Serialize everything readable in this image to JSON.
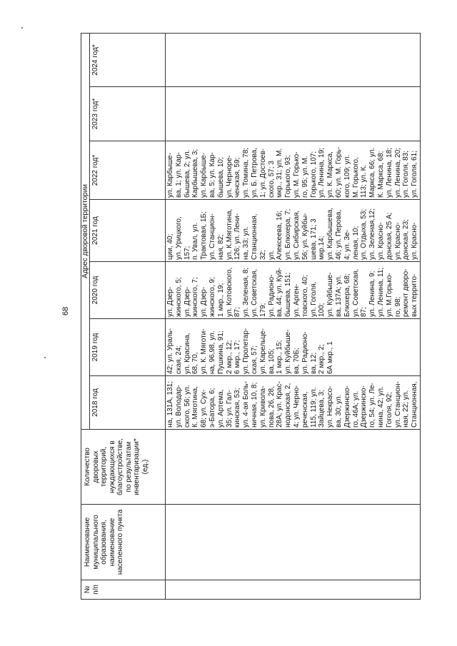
{
  "page_number": "68",
  "table": {
    "headers": {
      "num": "№\nп/п",
      "name": "Наименование\nмуниципального\nобразования,\nнаименование\nнаселенного пункта",
      "count": "Количество\nдворовых\nтерриторий,\nнуждающихся в\nблагоустройстве,\nпо результатам\nинвентаризации*\n(ед.)",
      "group": "Адрес дворовой территории",
      "years": [
        "2018 год",
        "2019 год",
        "2020 год",
        "2021 год",
        "2022 год*",
        "2023 год*",
        "2024 год*"
      ]
    },
    "row": {
      "num": "",
      "name": "",
      "count": "",
      "years": [
        "на, 131А, 131;\nул. Володар-\nского, 56; ул.\nК. Мяготина,\n68; ул. Сух-\nэ-Батора, 6;\nул. Артема,\n35; ул. Гал-\nкинская, 53;\nул. 4-ая Боль-\nничная, 10, 8;\nул. Кривола-\nпова, 26, 28,\n28А; ул. Крас-\nнодонская, 2,\n4; ул. Черно-\nреченская,\n115, 119; ул.\nЗайцева, 3;\nул. Некрасо-\nва, 30; ул.\nДзержинско-\nго, 46А; ул.\nДзержинско-\nго, 54; ул. Ле-\nнина, 42; ул.\nГоголя, 92;\nул. Станцион-\nная, 22; ул.\nСтанционная,",
        "42; ул. Ураль-\nская, 24;\nул. Красина,\n68, 70,\nул. К. Мяготи-\nна, 96,98, ул.\nПушкина, 91;\n2 мкр., 12;\n6 мкр., 17;\nул. Пролетар-\nская, 57;\nул. Карельце-\nва, 105;\n1 мкр., 15;\nул. Куйбыше-\nва, 70Б;\nул. Радионо-\nва, 12;\n2 мкр., 2;\n6А мкр., 1",
        "ул. Дзер-\nжинского, 5;\nул. Дзер-\nжинского, 7;\nул. Дзер-\nжинского, 9;\n1 мкр., 19;\nул. Котовского,\n87;\nул. Зеленая, 8;\nул. Советская,\n179;\nул. Радионо-\nва, 44; ул. Куй-\nбышева, 151;\nул. Арген-\nтовского, 40;\nул. Гоголя,\n100;\nул. Куйбыше-\nва, 137А; ул.\nБлюхера, 68;\nул. Советская,\n87;\nул. Ленина, 9;\nул. Ленина, 11;\nул. М.Горько-\nго, 98;\nремонт дворо-\nвых террито-",
        "ции, 40;\nул. Урицкого,\n157;\nп. Увал, ул.\nТрактовая, 1Б;\nул. Станцион-\nная, 82;\nул. К.Мяготина,\n126; ул. Лени-\nна, 33;     ул.\nСтанционная,\n32;\nул.\nАлексеева, 16;\nул. Блюхера, 7;\nул. Сибирская,\n56; ул. Куйбы-\nшева, 171; 3\nмкр.14;\nул. Карбышева,\n46; ул. Перова,\n4;     ул. Зе-\nленая, 10;\nул. Отдыха, 53;\nул. Зеленая,12;\nул. Красно-\nдонская, 25 А;\nул. Красно-\nдонская, 23;\nул. Красно-",
        "ул. Карбыше-\nва, 1; ул. Кар-\nбышева, 2; ул.\nКарбышева, 3;\nул. Карбыше-\nва, 5; ул. Кар-\nбышева, 10;\nул. Черноре-\nченская, 59;\nул. Томина, 78;\nул. Б. Петрова,\n1; ул. Достоев-\nского, 57; 3\nмкр., 31; ул. М.\nГорького, 93;\nул. М. Горько-\nго, 95; ул. М.\nГорького, 107;\nул. Ленина, 19;\nул. К. Маркса,\n60; ул. М. Горь-\nкого, 109; ул.\nМ. Горького,\n113; ул. К.\nМаркса, 66; ул.\nК. Маркса, 68;\nул. Ленина, 18;\nул. Ленина, 20;\nул. Гоголя, 83;\nул. Гоголя, 61;",
        "",
        ""
      ]
    }
  }
}
